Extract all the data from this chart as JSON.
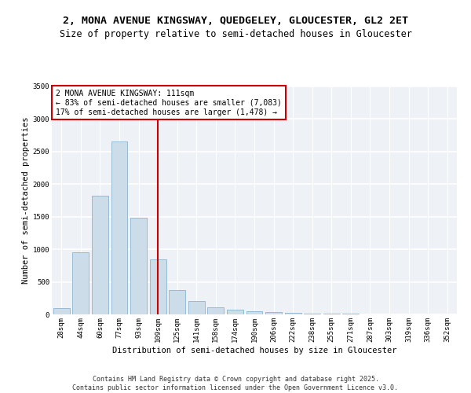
{
  "title_line1": "2, MONA AVENUE KINGSWAY, QUEDGELEY, GLOUCESTER, GL2 2ET",
  "title_line2": "Size of property relative to semi-detached houses in Gloucester",
  "xlabel": "Distribution of semi-detached houses by size in Gloucester",
  "ylabel": "Number of semi-detached properties",
  "categories": [
    "28sqm",
    "44sqm",
    "60sqm",
    "77sqm",
    "93sqm",
    "109sqm",
    "125sqm",
    "141sqm",
    "158sqm",
    "174sqm",
    "190sqm",
    "206sqm",
    "222sqm",
    "238sqm",
    "255sqm",
    "271sqm",
    "287sqm",
    "303sqm",
    "319sqm",
    "336sqm",
    "352sqm"
  ],
  "values": [
    100,
    950,
    1820,
    2650,
    1490,
    840,
    375,
    200,
    110,
    75,
    50,
    35,
    25,
    18,
    13,
    9,
    6,
    4,
    2,
    1,
    1
  ],
  "bar_color": "#ccdce8",
  "bar_edge_color": "#7aaac8",
  "vline_index": 5,
  "vline_color": "#cc0000",
  "annotation_title": "2 MONA AVENUE KINGSWAY: 111sqm",
  "annotation_line1": "← 83% of semi-detached houses are smaller (7,083)",
  "annotation_line2": "17% of semi-detached houses are larger (1,478) →",
  "annotation_box_color": "#cc0000",
  "ylim": [
    0,
    3500
  ],
  "yticks": [
    0,
    500,
    1000,
    1500,
    2000,
    2500,
    3000,
    3500
  ],
  "footer_line1": "Contains HM Land Registry data © Crown copyright and database right 2025.",
  "footer_line2": "Contains public sector information licensed under the Open Government Licence v3.0.",
  "background_color": "#eef2f7",
  "grid_color": "#ffffff",
  "title_fontsize": 9.5,
  "subtitle_fontsize": 8.5,
  "axis_label_fontsize": 7.5,
  "tick_fontsize": 6.5,
  "footer_fontsize": 6.0,
  "annotation_fontsize": 7.0
}
